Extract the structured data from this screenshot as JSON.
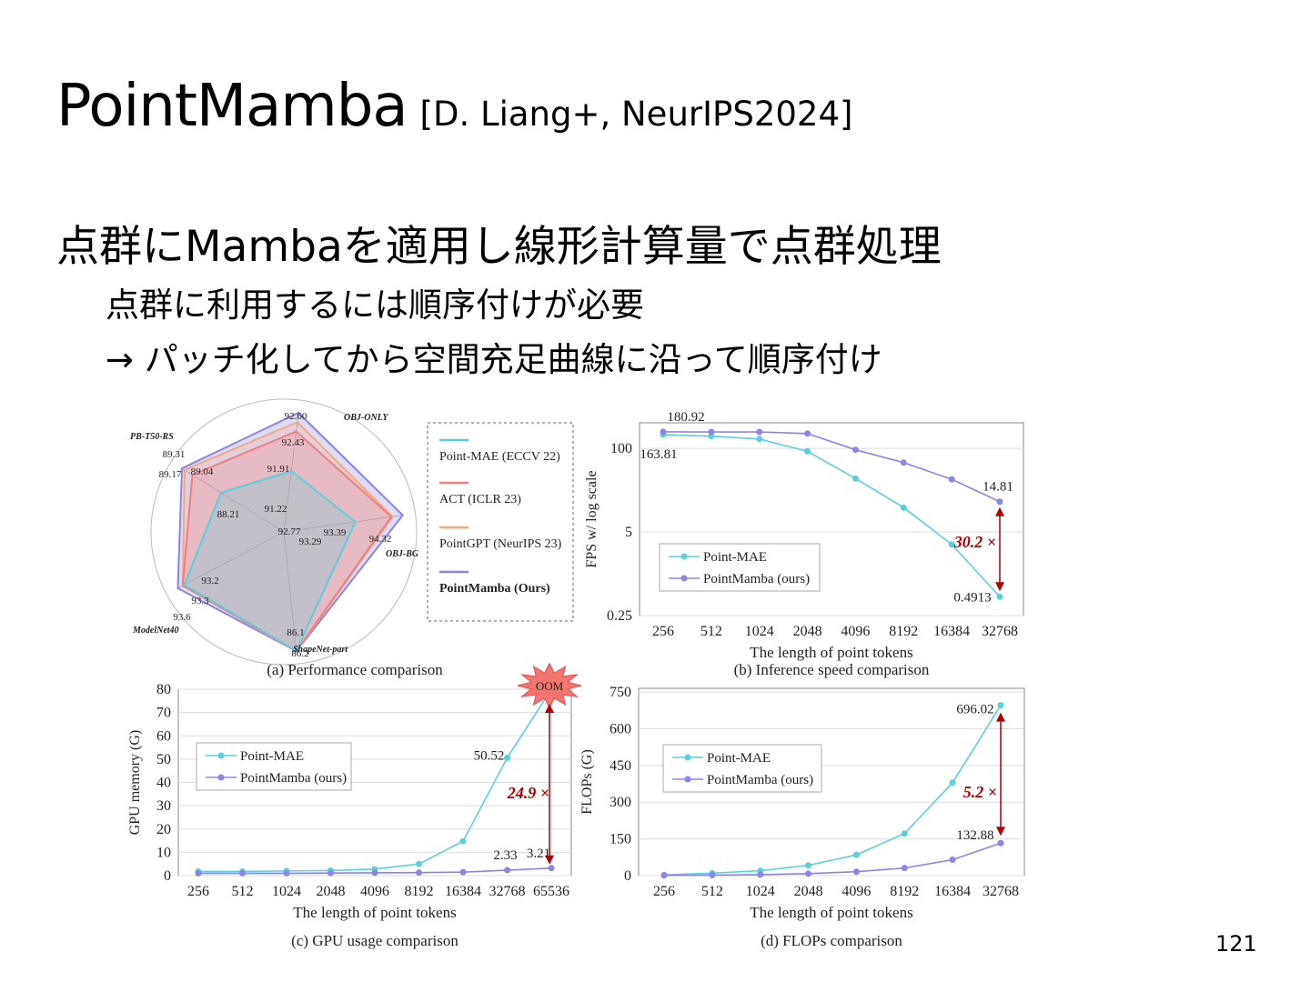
{
  "slide": {
    "title": "PointMamba",
    "citation": "[D. Liang+, NeurIPS2024]",
    "bullet_1": "点群にMambaを適用し線形計算量で点群処理",
    "bullet_2": "点群に利用するには順序付けが必要",
    "bullet_3": "→ パッチ化してから空間充足曲線に沿って順序付け",
    "page_number": "121"
  },
  "colors": {
    "mae": "#5bcfe0",
    "act": "#f08080",
    "gpt": "#f5a880",
    "mamba": "#8a85e6",
    "ratio": "#b00000"
  },
  "chart_data": [
    {
      "type": "radar",
      "caption": "(a) Performance comparison",
      "axes": [
        "OBJ-ONLY",
        "OBJ-BG",
        "ShapeNet-part",
        "ModelNet40",
        "PB-T50-RS"
      ],
      "series": [
        {
          "name": "Point-MAE (ECCV 22)",
          "values": [
            88.29,
            90.02,
            86.1,
            93.2,
            85.18
          ]
        },
        {
          "name": "ACT (ICLR 23)",
          "values": [
            91.22,
            93.29,
            86.14,
            93.3,
            88.21
          ]
        },
        {
          "name": "PointGPT (NeurIPS 23)",
          "values": [
            91.91,
            93.39,
            86.2,
            93.3,
            89.04
          ]
        },
        {
          "name": "PointMamba (Ours)",
          "values": [
            92.6,
            94.32,
            86.2,
            93.6,
            89.31
          ]
        }
      ],
      "value_labels": [
        "92.60",
        "92.43",
        "91.91",
        "91.22",
        "93.39",
        "93.29",
        "94.32",
        "86.1",
        "86.2",
        "93.2",
        "93.3",
        "93.6",
        "89.31",
        "89.17",
        "89.04",
        "88.21",
        "92.77"
      ]
    },
    {
      "type": "line",
      "caption": "(b) Inference speed comparison",
      "xlabel": "The length of point tokens",
      "ylabel": "FPS w/ log scale",
      "categories": [
        "256",
        "512",
        "1024",
        "2048",
        "4096",
        "8192",
        "16384",
        "32768"
      ],
      "y_ticks": [
        "100",
        "5",
        "0.25"
      ],
      "ylim": [
        0.25,
        250
      ],
      "log_scale": true,
      "series": [
        {
          "name": "Point-MAE",
          "values": [
            163.81,
            155,
            140,
            90,
            34,
            12,
            3.2,
            0.4913
          ]
        },
        {
          "name": "PointMamba (ours)",
          "values": [
            180.92,
            180,
            180,
            170,
            95,
            60,
            33,
            14.81
          ]
        }
      ],
      "annotations": {
        "mae_first": "163.81",
        "mamba_first": "180.92",
        "mamba_last": "14.81",
        "mae_last": "0.4913",
        "ratio": "30.2 ×"
      }
    },
    {
      "type": "line",
      "caption": "(c) GPU usage comparison",
      "xlabel": "The length of point tokens",
      "ylabel": "GPU memory (G)",
      "categories": [
        "256",
        "512",
        "1024",
        "2048",
        "4096",
        "8192",
        "16384",
        "32768",
        "65536"
      ],
      "y_ticks": [
        "80",
        "70",
        "60",
        "50",
        "40",
        "30",
        "20",
        "10",
        "0"
      ],
      "ylim": [
        0,
        80
      ],
      "series": [
        {
          "name": "Point-MAE",
          "values": [
            1.8,
            1.8,
            2.0,
            2.2,
            2.8,
            5.0,
            14.8,
            50.52,
            80
          ]
        },
        {
          "name": "PointMamba (ours)",
          "values": [
            1.0,
            1.0,
            1.0,
            1.1,
            1.2,
            1.3,
            1.5,
            2.33,
            3.21
          ]
        }
      ],
      "annotations": {
        "mae_label": "50.52",
        "mamba_label_1": "2.33",
        "mamba_label_2": "3.21",
        "oom": "OOM",
        "ratio": "24.9 ×"
      }
    },
    {
      "type": "line",
      "caption": "(d) FLOPs comparison",
      "xlabel": "The length of point tokens",
      "ylabel": "FLOPs (G)",
      "categories": [
        "256",
        "512",
        "1024",
        "2048",
        "4096",
        "8192",
        "16384",
        "32768"
      ],
      "y_ticks": [
        "750",
        "600",
        "450",
        "300",
        "150",
        "0"
      ],
      "ylim": [
        0,
        750
      ],
      "series": [
        {
          "name": "Point-MAE",
          "values": [
            3,
            10,
            20,
            42,
            85,
            172,
            380,
            696.02
          ]
        },
        {
          "name": "PointMamba (ours)",
          "values": [
            1,
            2,
            4,
            8,
            16,
            31,
            65,
            132.88
          ]
        }
      ],
      "annotations": {
        "mae_label": "696.02",
        "mamba_label": "132.88",
        "ratio": "5.2 ×"
      }
    }
  ]
}
